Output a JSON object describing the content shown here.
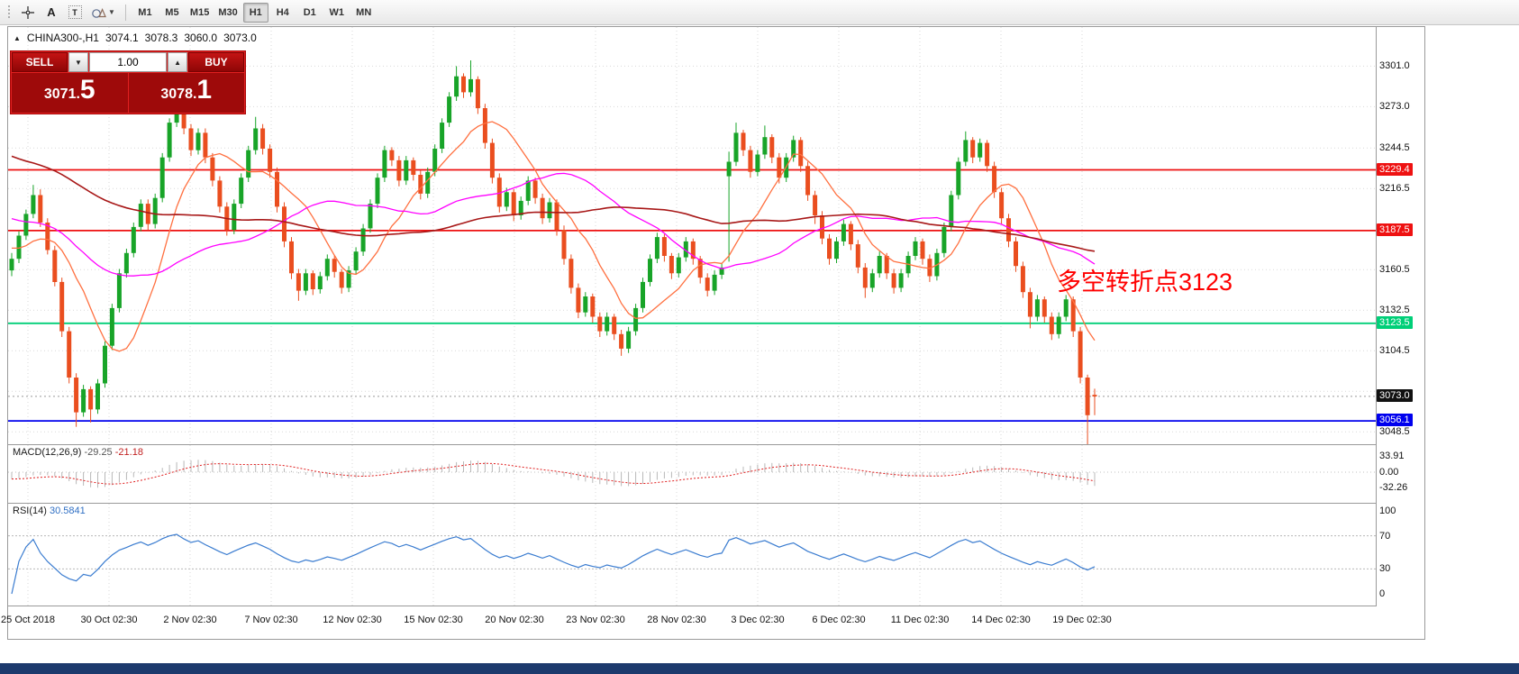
{
  "toolbar": {
    "tools": [
      {
        "name": "toolbar-grip"
      },
      {
        "name": "crosshair-tool"
      },
      {
        "name": "text-tool",
        "label": "A"
      },
      {
        "name": "label-tool",
        "label": "T"
      },
      {
        "name": "shapes-tool"
      }
    ],
    "timeframes": [
      "M1",
      "M5",
      "M15",
      "M30",
      "H1",
      "H4",
      "D1",
      "W1",
      "MN"
    ],
    "selected_timeframe": "H1"
  },
  "chart_header": {
    "symbol": "CHINA300-,H1",
    "open": "3074.1",
    "high": "3078.3",
    "low": "3060.0",
    "close": "3073.0"
  },
  "trade_panel": {
    "sell_label": "SELL",
    "buy_label": "BUY",
    "volume": "1.00",
    "sell_price_main": "3071.",
    "sell_price_big": "5",
    "buy_price_main": "3078.",
    "buy_price_big": "1"
  },
  "annotation": {
    "text": "多空转折点3123",
    "color": "#ff0000"
  },
  "chart_data": {
    "type": "candlestick",
    "symbol": "CHINA300-",
    "timeframe": "H1",
    "up_color": "#18a428",
    "down_color": "#ea4e1f",
    "price_range": [
      3040,
      3328
    ],
    "price_axis_ticks": [
      3301.0,
      3273.0,
      3244.5,
      3216.5,
      3187.5,
      3160.5,
      3132.5,
      3104.5,
      3076.5,
      3048.5
    ],
    "time_axis_labels": [
      "25 Oct 2018",
      "30 Oct 02:30",
      "2 Nov 02:30",
      "7 Nov 02:30",
      "12 Nov 02:30",
      "15 Nov 02:30",
      "20 Nov 02:30",
      "23 Nov 02:30",
      "28 Nov 02:30",
      "3 Dec 02:30",
      "6 Dec 02:30",
      "11 Dec 02:30",
      "14 Dec 02:30",
      "19 Dec 02:30"
    ],
    "hlines": [
      {
        "price": 3229.4,
        "color": "#ee1111",
        "label": "3229.4"
      },
      {
        "price": 3187.5,
        "color": "#ee1111",
        "label": "3187.5"
      },
      {
        "price": 3123.5,
        "color": "#00cf78",
        "label": "3123.5"
      },
      {
        "price": 3056.1,
        "color": "#0000ee",
        "label": "3056.1"
      }
    ],
    "current_price": {
      "value": 3073.0,
      "label": "3073.0",
      "label_bg": "#111111"
    },
    "moving_averages": [
      {
        "period": 10,
        "color": "#ff7040",
        "width": 1.3
      },
      {
        "period": 30,
        "color": "#ff00ff",
        "width": 1.3
      },
      {
        "period": 72,
        "color": "#a81818",
        "width": 1.6
      }
    ],
    "candles": [
      [
        3160,
        3172,
        3156,
        3168
      ],
      [
        3168,
        3187,
        3165,
        3184
      ],
      [
        3184,
        3202,
        3181,
        3199
      ],
      [
        3199,
        3219,
        3196,
        3212
      ],
      [
        3212,
        3216,
        3190,
        3193
      ],
      [
        3193,
        3196,
        3171,
        3174
      ],
      [
        3174,
        3177,
        3149,
        3152
      ],
      [
        3152,
        3155,
        3114,
        3118
      ],
      [
        3118,
        3121,
        3082,
        3086
      ],
      [
        3086,
        3089,
        3052,
        3062
      ],
      [
        3062,
        3081,
        3059,
        3078
      ],
      [
        3078,
        3080,
        3055,
        3064
      ],
      [
        3064,
        3085,
        3061,
        3082
      ],
      [
        3082,
        3111,
        3079,
        3108
      ],
      [
        3108,
        3137,
        3105,
        3134
      ],
      [
        3134,
        3161,
        3131,
        3158
      ],
      [
        3158,
        3175,
        3155,
        3172
      ],
      [
        3172,
        3193,
        3169,
        3190
      ],
      [
        3190,
        3209,
        3187,
        3206
      ],
      [
        3206,
        3209,
        3188,
        3192
      ],
      [
        3192,
        3213,
        3189,
        3210
      ],
      [
        3210,
        3241,
        3207,
        3238
      ],
      [
        3238,
        3265,
        3235,
        3262
      ],
      [
        3262,
        3283,
        3259,
        3276
      ],
      [
        3276,
        3279,
        3254,
        3258
      ],
      [
        3258,
        3261,
        3239,
        3243
      ],
      [
        3243,
        3258,
        3240,
        3255
      ],
      [
        3255,
        3258,
        3234,
        3238
      ],
      [
        3238,
        3241,
        3218,
        3222
      ],
      [
        3222,
        3225,
        3200,
        3204
      ],
      [
        3204,
        3207,
        3184,
        3188
      ],
      [
        3188,
        3209,
        3185,
        3206
      ],
      [
        3206,
        3227,
        3203,
        3224
      ],
      [
        3224,
        3246,
        3221,
        3243
      ],
      [
        3243,
        3266,
        3240,
        3258
      ],
      [
        3258,
        3261,
        3240,
        3244
      ],
      [
        3244,
        3247,
        3224,
        3228
      ],
      [
        3228,
        3231,
        3200,
        3204
      ],
      [
        3204,
        3207,
        3176,
        3180
      ],
      [
        3180,
        3183,
        3154,
        3158
      ],
      [
        3158,
        3161,
        3139,
        3146
      ],
      [
        3146,
        3161,
        3143,
        3158
      ],
      [
        3158,
        3160,
        3143,
        3147
      ],
      [
        3147,
        3159,
        3144,
        3156
      ],
      [
        3156,
        3171,
        3153,
        3168
      ],
      [
        3168,
        3170,
        3155,
        3159
      ],
      [
        3159,
        3161,
        3144,
        3148
      ],
      [
        3148,
        3163,
        3145,
        3160
      ],
      [
        3160,
        3176,
        3157,
        3173
      ],
      [
        3173,
        3192,
        3170,
        3189
      ],
      [
        3189,
        3209,
        3186,
        3206
      ],
      [
        3206,
        3227,
        3203,
        3224
      ],
      [
        3224,
        3246,
        3221,
        3243
      ],
      [
        3243,
        3245,
        3232,
        3236
      ],
      [
        3236,
        3239,
        3218,
        3222
      ],
      [
        3222,
        3239,
        3219,
        3236
      ],
      [
        3236,
        3238,
        3222,
        3226
      ],
      [
        3226,
        3229,
        3209,
        3213
      ],
      [
        3213,
        3231,
        3210,
        3228
      ],
      [
        3228,
        3247,
        3225,
        3244
      ],
      [
        3244,
        3265,
        3241,
        3262
      ],
      [
        3262,
        3283,
        3259,
        3280
      ],
      [
        3280,
        3301,
        3277,
        3294
      ],
      [
        3294,
        3296,
        3279,
        3283
      ],
      [
        3283,
        3305,
        3280,
        3292
      ],
      [
        3292,
        3294,
        3268,
        3272
      ],
      [
        3272,
        3275,
        3244,
        3248
      ],
      [
        3248,
        3251,
        3220,
        3224
      ],
      [
        3224,
        3227,
        3200,
        3204
      ],
      [
        3204,
        3217,
        3201,
        3214
      ],
      [
        3214,
        3216,
        3194,
        3198
      ],
      [
        3198,
        3211,
        3195,
        3208
      ],
      [
        3208,
        3225,
        3205,
        3222
      ],
      [
        3222,
        3224,
        3206,
        3210
      ],
      [
        3210,
        3213,
        3192,
        3196
      ],
      [
        3196,
        3210,
        3193,
        3207
      ],
      [
        3207,
        3209,
        3184,
        3188
      ],
      [
        3188,
        3191,
        3164,
        3168
      ],
      [
        3168,
        3171,
        3144,
        3148
      ],
      [
        3148,
        3151,
        3127,
        3131
      ],
      [
        3131,
        3145,
        3128,
        3142
      ],
      [
        3142,
        3144,
        3124,
        3128
      ],
      [
        3128,
        3131,
        3114,
        3118
      ],
      [
        3118,
        3131,
        3115,
        3128
      ],
      [
        3128,
        3130,
        3112,
        3116
      ],
      [
        3116,
        3119,
        3101,
        3106
      ],
      [
        3106,
        3121,
        3103,
        3118
      ],
      [
        3118,
        3137,
        3115,
        3134
      ],
      [
        3134,
        3155,
        3131,
        3152
      ],
      [
        3152,
        3171,
        3149,
        3168
      ],
      [
        3168,
        3186,
        3165,
        3183
      ],
      [
        3183,
        3185,
        3166,
        3170
      ],
      [
        3170,
        3172,
        3154,
        3158
      ],
      [
        3158,
        3172,
        3155,
        3169
      ],
      [
        3169,
        3183,
        3166,
        3180
      ],
      [
        3180,
        3182,
        3164,
        3168
      ],
      [
        3168,
        3170,
        3151,
        3155
      ],
      [
        3155,
        3158,
        3142,
        3146
      ],
      [
        3146,
        3160,
        3143,
        3157
      ],
      [
        3157,
        3165,
        3154,
        3162
      ],
      [
        3225,
        3242,
        3166,
        3235
      ],
      [
        3235,
        3262,
        3232,
        3255
      ],
      [
        3255,
        3257,
        3239,
        3243
      ],
      [
        3243,
        3246,
        3224,
        3228
      ],
      [
        3228,
        3243,
        3225,
        3240
      ],
      [
        3240,
        3260,
        3237,
        3252
      ],
      [
        3252,
        3254,
        3234,
        3238
      ],
      [
        3238,
        3241,
        3220,
        3224
      ],
      [
        3224,
        3241,
        3221,
        3238
      ],
      [
        3238,
        3253,
        3235,
        3250
      ],
      [
        3250,
        3252,
        3228,
        3232
      ],
      [
        3232,
        3235,
        3208,
        3212
      ],
      [
        3212,
        3215,
        3192,
        3198
      ],
      [
        3198,
        3201,
        3178,
        3182
      ],
      [
        3182,
        3185,
        3164,
        3168
      ],
      [
        3168,
        3183,
        3165,
        3180
      ],
      [
        3180,
        3195,
        3177,
        3192
      ],
      [
        3192,
        3194,
        3174,
        3178
      ],
      [
        3178,
        3181,
        3158,
        3162
      ],
      [
        3162,
        3165,
        3141,
        3148
      ],
      [
        3148,
        3161,
        3145,
        3158
      ],
      [
        3158,
        3173,
        3155,
        3170
      ],
      [
        3170,
        3172,
        3154,
        3158
      ],
      [
        3158,
        3161,
        3144,
        3148
      ],
      [
        3148,
        3161,
        3145,
        3158
      ],
      [
        3158,
        3173,
        3155,
        3170
      ],
      [
        3170,
        3183,
        3167,
        3180
      ],
      [
        3180,
        3182,
        3164,
        3168
      ],
      [
        3168,
        3171,
        3152,
        3156
      ],
      [
        3156,
        3175,
        3153,
        3172
      ],
      [
        3172,
        3193,
        3169,
        3190
      ],
      [
        3190,
        3215,
        3187,
        3212
      ],
      [
        3212,
        3238,
        3209,
        3235
      ],
      [
        3235,
        3256,
        3232,
        3250
      ],
      [
        3250,
        3252,
        3234,
        3238
      ],
      [
        3238,
        3251,
        3235,
        3248
      ],
      [
        3248,
        3250,
        3228,
        3232
      ],
      [
        3232,
        3235,
        3210,
        3214
      ],
      [
        3214,
        3217,
        3192,
        3196
      ],
      [
        3196,
        3199,
        3176,
        3180
      ],
      [
        3180,
        3183,
        3159,
        3163
      ],
      [
        3163,
        3166,
        3141,
        3145
      ],
      [
        3145,
        3148,
        3120,
        3128
      ],
      [
        3128,
        3143,
        3125,
        3140
      ],
      [
        3140,
        3142,
        3124,
        3128
      ],
      [
        3128,
        3131,
        3112,
        3116
      ],
      [
        3116,
        3131,
        3113,
        3128
      ],
      [
        3128,
        3143,
        3125,
        3140
      ],
      [
        3140,
        3142,
        3114,
        3118
      ],
      [
        3118,
        3121,
        3082,
        3086
      ],
      [
        3086,
        3088,
        3040,
        3060
      ],
      [
        3074.1,
        3078.3,
        3060.0,
        3073.0
      ]
    ],
    "macd": {
      "label": "MACD(12,26,9)",
      "value_main": "-29.25",
      "value_signal": "-21.18",
      "params": [
        12,
        26,
        9
      ],
      "axis_ticks": [
        "33.91",
        "0.00",
        "-32.26"
      ],
      "histogram_color": "#b8b8b8",
      "signal_color": "#e02020"
    },
    "rsi": {
      "label": "RSI(14)",
      "value": "30.5841",
      "period": 14,
      "levels": [
        70,
        30
      ],
      "axis_ticks": [
        "100",
        "70",
        "30",
        "0"
      ],
      "line_color": "#3a7cd0"
    }
  }
}
